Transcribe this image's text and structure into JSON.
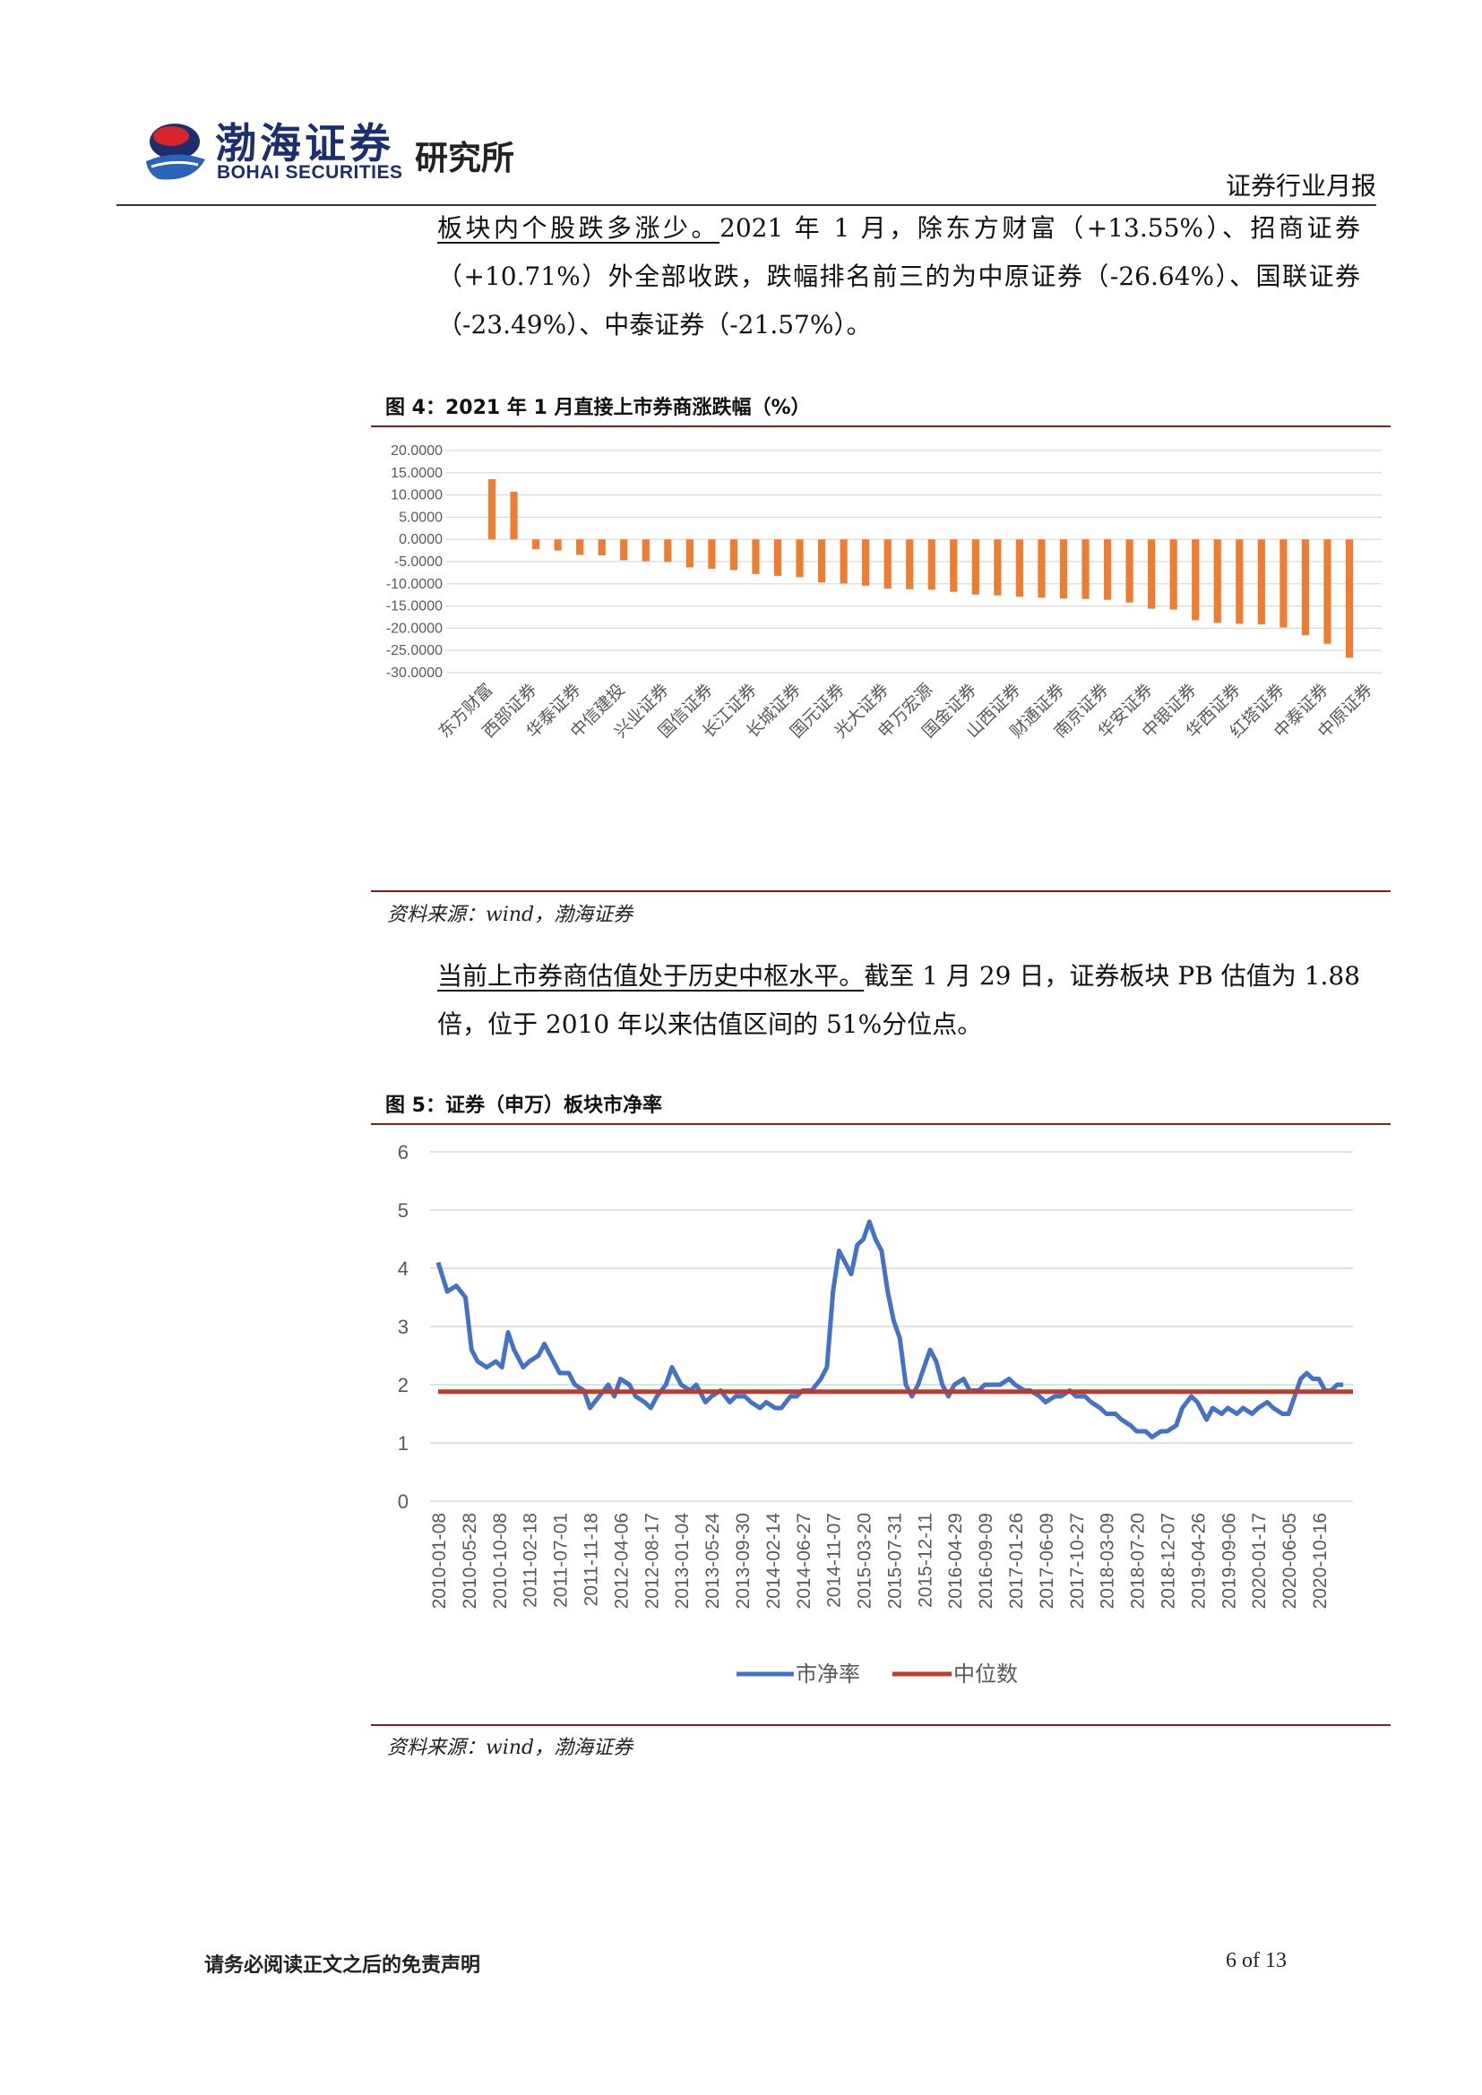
{
  "header": {
    "logo_cn": "渤海证券",
    "logo_en": "BOHAI SECURITIES",
    "institute": "研究所",
    "report_type": "证券行业月报"
  },
  "para1": {
    "lead": "板块内个股跌多涨少。",
    "body": "2021 年 1 月，除东方财富（+13.55%）、招商证券（+10.71%）外全部收跌，跌幅排名前三的为中原证券（-26.64%）、国联证券（-23.49%）、中泰证券（-21.57%）。"
  },
  "figure4": {
    "title": "图 4：2021 年 1 月直接上市券商涨跌幅（%）",
    "source": "资料来源：wind，渤海证券"
  },
  "para2": {
    "lead": "当前上市券商估值处于历史中枢水平。",
    "body": "截至 1 月 29 日，证券板块 PB 估值为 1.88 倍，位于 2010 年以来估值区间的 51%分位点。"
  },
  "figure5": {
    "title": "图 5：证券（申万）板块市净率",
    "source": "资料来源：wind，渤海证券"
  },
  "footer": {
    "disclaimer": "请务必阅读正文之后的免责声明",
    "page": "6 of 13"
  },
  "chart_data": [
    {
      "type": "bar",
      "color": "#ed7d31",
      "ylim": [
        -30,
        20
      ],
      "yticks": [
        "20.0000",
        "15.0000",
        "10.0000",
        "5.0000",
        "0.0000",
        "-5.0000",
        "-10.0000",
        "-15.0000",
        "-20.0000",
        "-25.0000",
        "-30.0000"
      ],
      "grid": true,
      "category_labels": [
        "东方财富",
        "西部证券",
        "华泰证券",
        "中信建投",
        "兴业证券",
        "国信证券",
        "长江证券",
        "长城证券",
        "国元证券",
        "光大证券",
        "申万宏源",
        "国金证券",
        "山西证券",
        "财通证券",
        "南京证券",
        "华安证券",
        "中银证券",
        "华西证券",
        "红塔证券",
        "中泰证券",
        "中原证券"
      ],
      "values": [
        13.55,
        10.71,
        -2.2,
        -2.5,
        -3.5,
        -3.6,
        -4.7,
        -4.9,
        -5.1,
        -6.3,
        -6.6,
        -6.9,
        -7.8,
        -8.2,
        -8.5,
        -9.7,
        -9.9,
        -10.4,
        -11.1,
        -11.2,
        -11.3,
        -11.8,
        -12.4,
        -12.6,
        -12.9,
        -13.1,
        -13.3,
        -13.4,
        -13.6,
        -14.2,
        -15.6,
        -15.8,
        -18.2,
        -18.8,
        -19.0,
        -19.1,
        -19.8,
        -21.57,
        -23.49,
        -26.64
      ]
    },
    {
      "type": "line",
      "ylim": [
        0,
        6
      ],
      "yticks": [
        "0",
        "1",
        "2",
        "3",
        "4",
        "5",
        "6"
      ],
      "grid": true,
      "x_labels": [
        "2010-01-08",
        "2010-05-28",
        "2010-10-08",
        "2011-02-18",
        "2011-07-01",
        "2011-11-18",
        "2012-04-06",
        "2012-08-17",
        "2013-01-04",
        "2013-05-24",
        "2013-09-30",
        "2014-02-14",
        "2014-06-27",
        "2014-11-07",
        "2015-03-20",
        "2015-07-31",
        "2015-12-11",
        "2016-04-29",
        "2016-09-09",
        "2017-01-26",
        "2017-06-09",
        "2017-10-27",
        "2018-03-09",
        "2018-07-20",
        "2018-12-07",
        "2019-04-26",
        "2019-09-06",
        "2020-01-17",
        "2020-06-05",
        "2020-10-16"
      ],
      "legend": [
        {
          "name": "市净率",
          "color": "#4472c4"
        },
        {
          "name": "中位数",
          "color": "#c0392b"
        }
      ],
      "series": [
        {
          "name": "市净率",
          "color": "#4472c4",
          "points": [
            [
              0,
              4.1
            ],
            [
              0.3,
              3.6
            ],
            [
              0.6,
              3.7
            ],
            [
              0.9,
              3.5
            ],
            [
              1.1,
              2.6
            ],
            [
              1.3,
              2.4
            ],
            [
              1.6,
              2.3
            ],
            [
              1.9,
              2.4
            ],
            [
              2.1,
              2.3
            ],
            [
              2.3,
              2.9
            ],
            [
              2.5,
              2.6
            ],
            [
              2.8,
              2.3
            ],
            [
              3.0,
              2.4
            ],
            [
              3.3,
              2.5
            ],
            [
              3.5,
              2.7
            ],
            [
              3.8,
              2.4
            ],
            [
              4.0,
              2.2
            ],
            [
              4.3,
              2.2
            ],
            [
              4.5,
              2.0
            ],
            [
              4.8,
              1.9
            ],
            [
              5.0,
              1.6
            ],
            [
              5.3,
              1.8
            ],
            [
              5.6,
              2.0
            ],
            [
              5.8,
              1.8
            ],
            [
              6.0,
              2.1
            ],
            [
              6.3,
              2.0
            ],
            [
              6.5,
              1.8
            ],
            [
              6.8,
              1.7
            ],
            [
              7.0,
              1.6
            ],
            [
              7.2,
              1.8
            ],
            [
              7.5,
              2.0
            ],
            [
              7.7,
              2.3
            ],
            [
              8.0,
              2.0
            ],
            [
              8.3,
              1.9
            ],
            [
              8.5,
              2.0
            ],
            [
              8.8,
              1.7
            ],
            [
              9.0,
              1.8
            ],
            [
              9.3,
              1.9
            ],
            [
              9.6,
              1.7
            ],
            [
              9.8,
              1.8
            ],
            [
              10.1,
              1.8
            ],
            [
              10.3,
              1.7
            ],
            [
              10.6,
              1.6
            ],
            [
              10.8,
              1.7
            ],
            [
              11.1,
              1.6
            ],
            [
              11.3,
              1.6
            ],
            [
              11.6,
              1.8
            ],
            [
              11.8,
              1.8
            ],
            [
              12.0,
              1.9
            ],
            [
              12.3,
              1.9
            ],
            [
              12.6,
              2.1
            ],
            [
              12.8,
              2.3
            ],
            [
              13.0,
              3.6
            ],
            [
              13.2,
              4.3
            ],
            [
              13.4,
              4.1
            ],
            [
              13.6,
              3.9
            ],
            [
              13.8,
              4.4
            ],
            [
              14.0,
              4.5
            ],
            [
              14.2,
              4.8
            ],
            [
              14.4,
              4.5
            ],
            [
              14.6,
              4.3
            ],
            [
              14.8,
              3.6
            ],
            [
              15.0,
              3.1
            ],
            [
              15.2,
              2.8
            ],
            [
              15.4,
              2.0
            ],
            [
              15.6,
              1.8
            ],
            [
              15.8,
              2.0
            ],
            [
              16.0,
              2.3
            ],
            [
              16.2,
              2.6
            ],
            [
              16.4,
              2.4
            ],
            [
              16.6,
              2.0
            ],
            [
              16.8,
              1.8
            ],
            [
              17.0,
              2.0
            ],
            [
              17.3,
              2.1
            ],
            [
              17.5,
              1.9
            ],
            [
              17.8,
              1.9
            ],
            [
              18.0,
              2.0
            ],
            [
              18.3,
              2.0
            ],
            [
              18.5,
              2.0
            ],
            [
              18.8,
              2.1
            ],
            [
              19.0,
              2.0
            ],
            [
              19.3,
              1.9
            ],
            [
              19.5,
              1.9
            ],
            [
              19.8,
              1.8
            ],
            [
              20.0,
              1.7
            ],
            [
              20.3,
              1.8
            ],
            [
              20.5,
              1.8
            ],
            [
              20.8,
              1.9
            ],
            [
              21.0,
              1.8
            ],
            [
              21.3,
              1.8
            ],
            [
              21.5,
              1.7
            ],
            [
              21.8,
              1.6
            ],
            [
              22.0,
              1.5
            ],
            [
              22.3,
              1.5
            ],
            [
              22.5,
              1.4
            ],
            [
              22.8,
              1.3
            ],
            [
              23.0,
              1.2
            ],
            [
              23.3,
              1.2
            ],
            [
              23.5,
              1.1
            ],
            [
              23.8,
              1.2
            ],
            [
              24.0,
              1.2
            ],
            [
              24.3,
              1.3
            ],
            [
              24.5,
              1.6
            ],
            [
              24.8,
              1.8
            ],
            [
              25.0,
              1.7
            ],
            [
              25.3,
              1.4
            ],
            [
              25.5,
              1.6
            ],
            [
              25.8,
              1.5
            ],
            [
              26.0,
              1.6
            ],
            [
              26.3,
              1.5
            ],
            [
              26.5,
              1.6
            ],
            [
              26.8,
              1.5
            ],
            [
              27.0,
              1.6
            ],
            [
              27.3,
              1.7
            ],
            [
              27.5,
              1.6
            ],
            [
              27.8,
              1.5
            ],
            [
              28.0,
              1.5
            ],
            [
              28.2,
              1.8
            ],
            [
              28.4,
              2.1
            ],
            [
              28.6,
              2.2
            ],
            [
              28.8,
              2.1
            ],
            [
              29.0,
              2.1
            ],
            [
              29.2,
              1.9
            ],
            [
              29.4,
              1.9
            ],
            [
              29.6,
              2.0
            ],
            [
              29.8,
              2.0
            ]
          ]
        },
        {
          "name": "中位数",
          "color": "#c0392b",
          "value": 1.88
        }
      ]
    }
  ]
}
